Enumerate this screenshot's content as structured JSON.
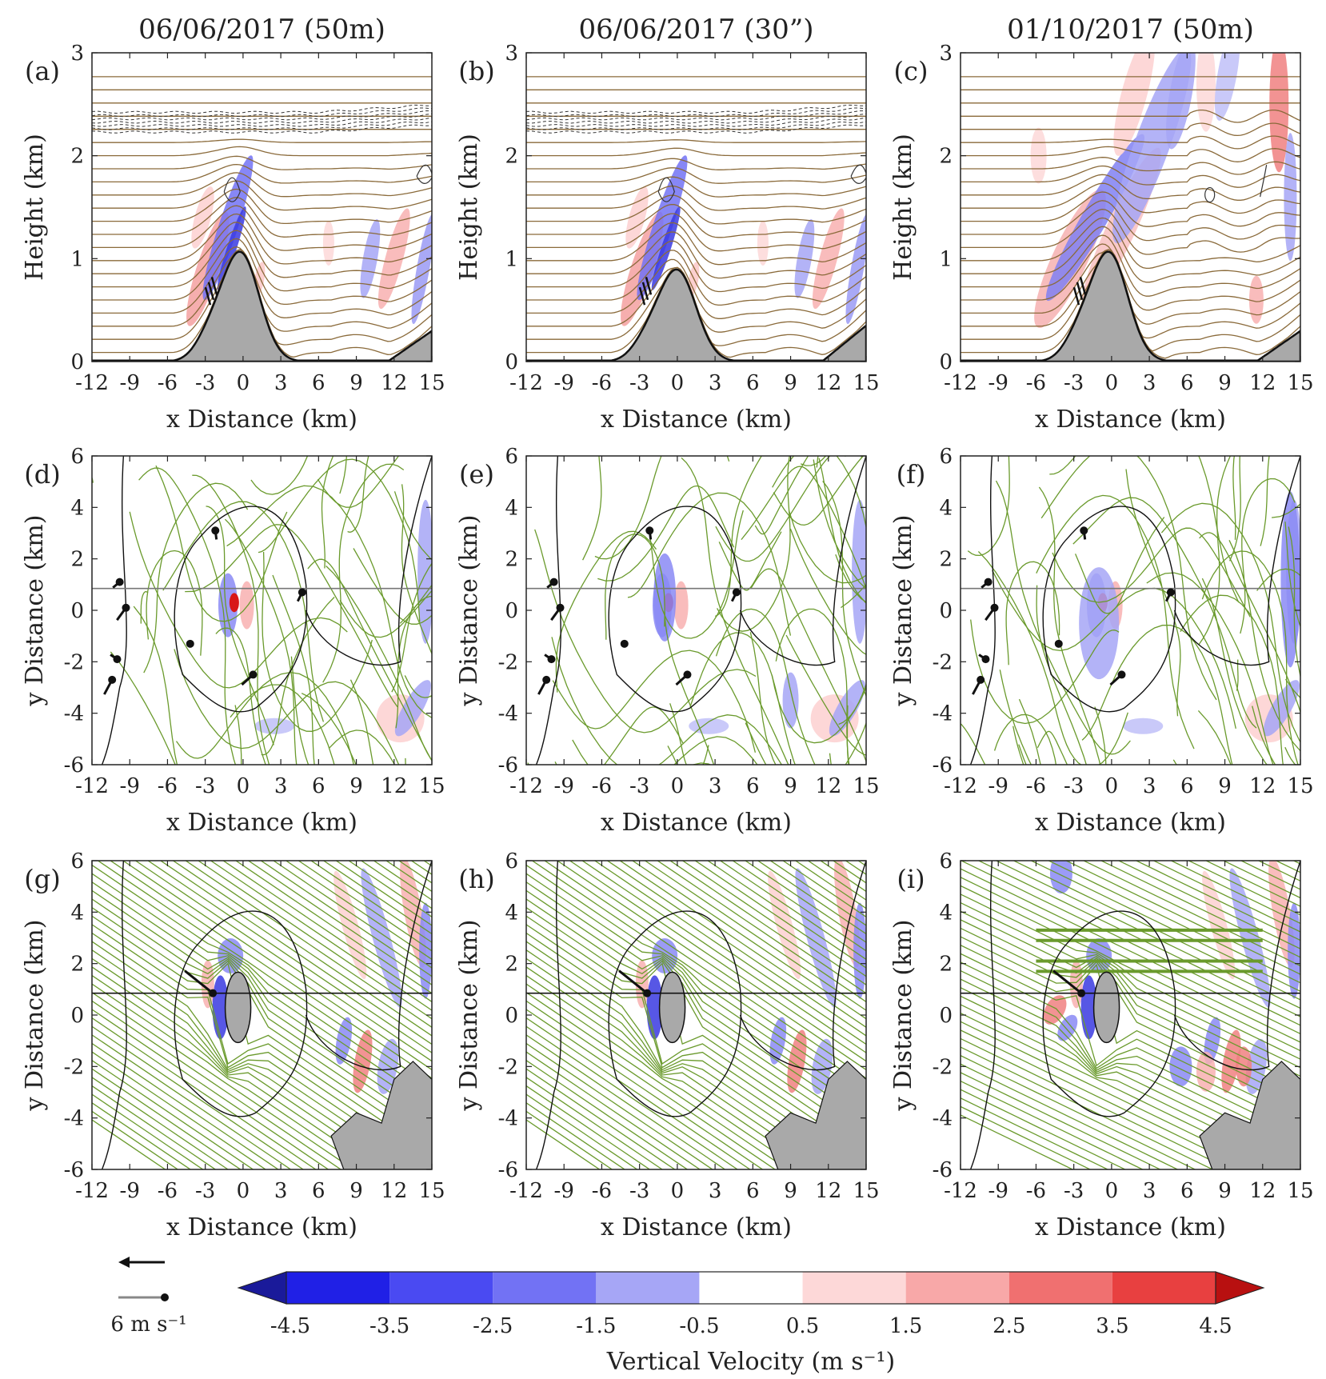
{
  "figure": {
    "column_titles": [
      "06/06/2017 (50m)",
      "06/06/2017 (30”)",
      "01/10/2017 (50m)"
    ],
    "panels": [
      {
        "label": "(a)",
        "type": "cross-section"
      },
      {
        "label": "(b)",
        "type": "cross-section"
      },
      {
        "label": "(c)",
        "type": "cross-section"
      },
      {
        "label": "(d)",
        "type": "plan-view"
      },
      {
        "label": "(e)",
        "type": "plan-view"
      },
      {
        "label": "(f)",
        "type": "plan-view"
      },
      {
        "label": "(g)",
        "type": "plan-view"
      },
      {
        "label": "(h)",
        "type": "plan-view"
      },
      {
        "label": "(i)",
        "type": "plan-view"
      }
    ],
    "reference_vector": {
      "value": "6",
      "unit": "m s⁻¹"
    },
    "colors": {
      "streamline": "#6a9a2c",
      "isentrope": "#8a6a3a",
      "terrain": "#a9a9a9",
      "neg_strong": "#1a1ac8",
      "pos_strong": "#d81818"
    }
  },
  "chart_data": [
    {
      "type": "contour",
      "panel": "(a)",
      "title": "06/06/2017 (50m)",
      "xlabel": "x Distance (km)",
      "ylabel": "Height (km)",
      "xlim": [
        -12,
        15
      ],
      "ylim": [
        0,
        3
      ],
      "xticks": [
        -12,
        -9,
        -6,
        -3,
        0,
        3,
        6,
        9,
        12,
        15
      ],
      "yticks": [
        0,
        1,
        2,
        3
      ],
      "terrain_peak_km": {
        "x": -0.2,
        "height": 1.05
      }
    },
    {
      "type": "contour",
      "panel": "(b)",
      "title": "06/06/2017 (30”)",
      "xlabel": "x Distance (km)",
      "ylabel": "Height (km)",
      "xlim": [
        -12,
        15
      ],
      "ylim": [
        0,
        3
      ],
      "xticks": [
        -12,
        -9,
        -6,
        -3,
        0,
        3,
        6,
        9,
        12,
        15
      ],
      "yticks": [
        0,
        1,
        2,
        3
      ],
      "terrain_peak_km": {
        "x": 0,
        "height": 0.88
      }
    },
    {
      "type": "contour",
      "panel": "(c)",
      "title": "01/10/2017 (50m)",
      "xlabel": "x Distance (km)",
      "ylabel": "Height (km)",
      "xlim": [
        -12,
        15
      ],
      "ylim": [
        0,
        3
      ],
      "xticks": [
        -12,
        -9,
        -6,
        -3,
        0,
        3,
        6,
        9,
        12,
        15
      ],
      "yticks": [
        0,
        1,
        2,
        3
      ],
      "terrain_peak_km": {
        "x": -0.2,
        "height": 1.05
      }
    },
    {
      "type": "streamline",
      "panels": [
        "(d)",
        "(e)",
        "(f)",
        "(g)",
        "(h)",
        "(i)"
      ],
      "xlabel": "x Distance (km)",
      "ylabel": "y Distance (km)",
      "xlim": [
        -12,
        15
      ],
      "ylim": [
        -6,
        6
      ],
      "xticks": [
        -12,
        -9,
        -6,
        -3,
        0,
        3,
        6,
        9,
        12,
        15
      ],
      "yticks": [
        -6,
        -4,
        -2,
        0,
        2,
        4,
        6
      ],
      "cross_section_y_km": 0.85
    },
    {
      "type": "colorbar",
      "title": "Vertical Velocity (m s⁻¹)",
      "tick_labels": [
        "-4.5",
        "-3.5",
        "-2.5",
        "-1.5",
        "-0.5",
        "0.5",
        "1.5",
        "2.5",
        "3.5",
        "4.5"
      ],
      "bounds": [
        -4.5,
        -3.5,
        -2.5,
        -1.5,
        -0.5,
        0.5,
        1.5,
        2.5,
        3.5,
        4.5
      ],
      "colors": [
        "#2020e6",
        "#4a4af2",
        "#7272f4",
        "#a6a6f6",
        "#ffffff",
        "#fdd8d8",
        "#f8a8a8",
        "#f07070",
        "#e84040"
      ],
      "extend_low_color": "#1a1a9a",
      "extend_high_color": "#b81010"
    }
  ]
}
